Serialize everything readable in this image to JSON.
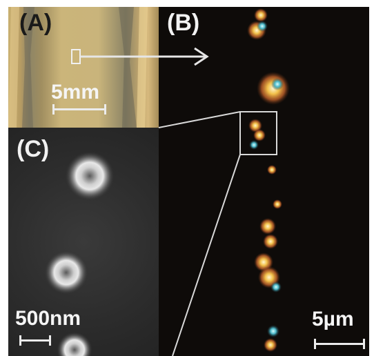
{
  "panels": {
    "a": {
      "label": "(A)",
      "scale_label": "5mm"
    },
    "b": {
      "label": "(B)",
      "scale_label": "5µm"
    },
    "c": {
      "label": "(C)",
      "scale_label": "500nm"
    }
  },
  "colors": {
    "background_b": "#0e0b09",
    "overlay_lines": "#d9d9d9",
    "arrow": "#e6e6e6"
  }
}
